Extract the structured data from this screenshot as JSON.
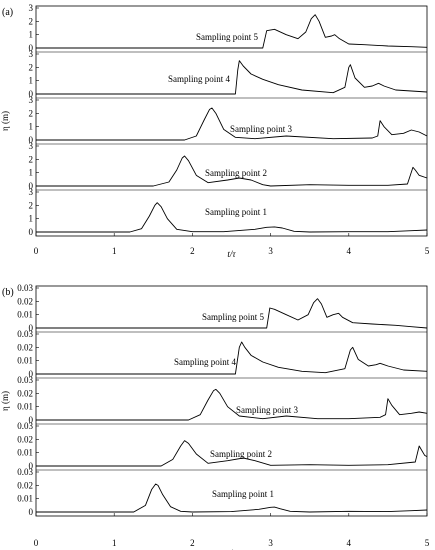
{
  "chart_data": [
    {
      "panel_label": "(a)",
      "type": "line",
      "xlabel": "t/τ",
      "ylabel": "η (m)",
      "xlim": [
        0,
        5
      ],
      "x_ticks": [
        "0",
        "1",
        "2",
        "3",
        "4",
        "5"
      ],
      "strip_ylim": [
        0,
        3
      ],
      "strip_y_ticks": [
        "0",
        "1",
        "2",
        "3"
      ],
      "series": [
        {
          "name": "Sampling point 1",
          "x": [
            0,
            1.2,
            1.35,
            1.45,
            1.52,
            1.55,
            1.6,
            1.68,
            1.8,
            2.0,
            2.4,
            2.8,
            2.95,
            3.05,
            3.15,
            3.3,
            3.5,
            4.0,
            4.5,
            4.8,
            5.0
          ],
          "y": [
            0,
            0,
            0.25,
            1.2,
            2.0,
            2.2,
            1.9,
            1.0,
            0.2,
            0.02,
            0.02,
            0.2,
            0.35,
            0.38,
            0.3,
            0.05,
            0.0,
            0.02,
            0.02,
            0.1,
            0.15
          ]
        },
        {
          "name": "Sampling point 2",
          "x": [
            0,
            1.5,
            1.7,
            1.8,
            1.87,
            1.9,
            1.95,
            2.05,
            2.2,
            2.45,
            2.6,
            2.75,
            2.9,
            3.0,
            3.5,
            4.0,
            4.5,
            4.75,
            4.82,
            4.85,
            4.9,
            5.0
          ],
          "y": [
            0,
            0,
            0.3,
            1.2,
            2.1,
            2.25,
            1.9,
            0.8,
            0.25,
            0.45,
            0.6,
            0.45,
            0.1,
            0.0,
            0.1,
            0.05,
            0.05,
            0.15,
            1.4,
            1.2,
            0.8,
            0.6
          ]
        },
        {
          "name": "Sampling point 3",
          "x": [
            0,
            1.9,
            2.05,
            2.15,
            2.22,
            2.25,
            2.3,
            2.4,
            2.55,
            2.8,
            3.2,
            3.8,
            4.3,
            4.37,
            4.4,
            4.45,
            4.55,
            4.7,
            4.8,
            4.9,
            5.0
          ],
          "y": [
            0,
            0,
            0.3,
            1.5,
            2.3,
            2.4,
            2.0,
            0.8,
            0.2,
            0.1,
            0.3,
            0.1,
            0.15,
            0.3,
            1.45,
            1.0,
            0.4,
            0.5,
            0.75,
            0.6,
            0.3
          ]
        },
        {
          "name": "Sampling point 4",
          "x": [
            0,
            2.55,
            2.58,
            2.6,
            2.65,
            2.75,
            2.9,
            3.1,
            3.4,
            3.8,
            3.95,
            4.0,
            4.02,
            4.08,
            4.2,
            4.3,
            4.38,
            4.45,
            4.6,
            5.0
          ],
          "y": [
            0,
            0,
            1.8,
            2.5,
            2.1,
            1.5,
            1.1,
            0.7,
            0.3,
            0.1,
            0.5,
            2.0,
            2.2,
            1.2,
            0.5,
            0.6,
            0.8,
            0.6,
            0.3,
            0.15
          ]
        },
        {
          "name": "Sampling point 5",
          "x": [
            0,
            2.9,
            2.95,
            3.05,
            3.2,
            3.35,
            3.45,
            3.52,
            3.57,
            3.62,
            3.7,
            3.78,
            3.82,
            3.88,
            4.0,
            4.2,
            4.5,
            4.8,
            5.0
          ],
          "y": [
            0,
            0,
            1.3,
            1.4,
            1.0,
            0.7,
            1.2,
            2.2,
            2.5,
            2.0,
            0.8,
            0.9,
            1.0,
            0.7,
            0.3,
            0.25,
            0.15,
            0.1,
            0.05
          ]
        }
      ]
    },
    {
      "panel_label": "(b)",
      "type": "line",
      "xlabel": "t/τ",
      "ylabel": "η (m)",
      "xlim": [
        0,
        5
      ],
      "x_ticks": [
        "0",
        "1",
        "2",
        "3",
        "4",
        "5"
      ],
      "strip_ylim": [
        0,
        0.03
      ],
      "strip_y_ticks": [
        "0",
        "0.01",
        "0.02",
        "0.03"
      ],
      "series": [
        {
          "name": "Sampling point 1",
          "x": [
            0,
            1.25,
            1.4,
            1.48,
            1.53,
            1.56,
            1.62,
            1.72,
            1.85,
            2.0,
            2.5,
            2.85,
            3.0,
            3.05,
            3.12,
            3.25,
            3.5,
            4.0,
            4.5,
            4.8,
            5.0
          ],
          "y": [
            0,
            0,
            0.005,
            0.017,
            0.021,
            0.02,
            0.013,
            0.004,
            0.0005,
            0.0,
            0.0003,
            0.002,
            0.0035,
            0.0037,
            0.0025,
            0.0005,
            0.0,
            0.0005,
            0.0003,
            0.001,
            0.0015
          ]
        },
        {
          "name": "Sampling point 2",
          "x": [
            0,
            1.6,
            1.75,
            1.85,
            1.9,
            1.95,
            2.05,
            2.2,
            2.45,
            2.65,
            2.8,
            3.0,
            3.5,
            4.0,
            4.5,
            4.85,
            4.9,
            4.93,
            4.97,
            5.0
          ],
          "y": [
            0,
            0,
            0.005,
            0.015,
            0.019,
            0.017,
            0.009,
            0.002,
            0.004,
            0.006,
            0.004,
            0.0005,
            0.001,
            0.0005,
            0.001,
            0.003,
            0.015,
            0.012,
            0.008,
            0.007
          ]
        },
        {
          "name": "Sampling point 3",
          "x": [
            0,
            1.95,
            2.1,
            2.2,
            2.27,
            2.3,
            2.35,
            2.45,
            2.6,
            2.9,
            3.2,
            3.6,
            4.0,
            4.4,
            4.47,
            4.5,
            4.55,
            4.65,
            4.8,
            4.9,
            5.0
          ],
          "y": [
            0,
            0,
            0.004,
            0.015,
            0.022,
            0.023,
            0.02,
            0.01,
            0.003,
            0.001,
            0.003,
            0.001,
            0.001,
            0.002,
            0.004,
            0.016,
            0.011,
            0.004,
            0.005,
            0.006,
            0.005
          ]
        },
        {
          "name": "Sampling point 4",
          "x": [
            0,
            2.55,
            2.6,
            2.63,
            2.67,
            2.75,
            2.9,
            3.1,
            3.4,
            3.7,
            3.95,
            4.02,
            4.05,
            4.12,
            4.25,
            4.35,
            4.4,
            4.5,
            4.7,
            5.0
          ],
          "y": [
            0,
            0,
            0.02,
            0.024,
            0.02,
            0.014,
            0.009,
            0.005,
            0.002,
            0.001,
            0.004,
            0.018,
            0.02,
            0.011,
            0.006,
            0.007,
            0.008,
            0.006,
            0.003,
            0.002
          ]
        },
        {
          "name": "Sampling point 5",
          "x": [
            0,
            2.95,
            2.99,
            3.05,
            3.2,
            3.35,
            3.48,
            3.55,
            3.6,
            3.65,
            3.72,
            3.8,
            3.87,
            3.92,
            4.05,
            4.3,
            4.6,
            4.8,
            5.0
          ],
          "y": [
            0,
            0,
            0.015,
            0.014,
            0.01,
            0.006,
            0.01,
            0.019,
            0.022,
            0.018,
            0.008,
            0.01,
            0.011,
            0.008,
            0.004,
            0.003,
            0.002,
            0.001,
            0.0
          ]
        }
      ]
    }
  ]
}
